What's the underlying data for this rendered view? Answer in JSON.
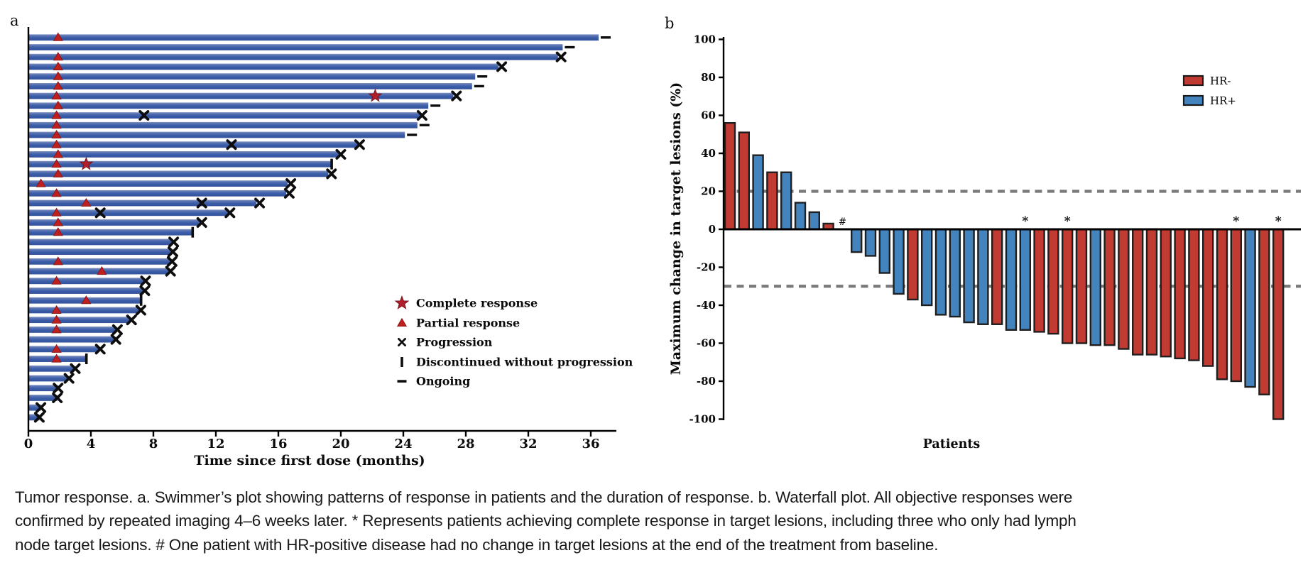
{
  "colors": {
    "swimmer_bar_top": "#8495c4",
    "swimmer_bar": "#3a5ca8",
    "swimmer_bar_bottom": "#34529a",
    "marker_red": "#c01f1f",
    "marker_red_edge": "#8f1414",
    "star_red": "#b01f2a",
    "black": "#0d0d0d",
    "hr_neg": "#c23b32",
    "hr_pos": "#4484be",
    "bar_outline": "#1f1f1f",
    "dashed_line": "#7a7a7a"
  },
  "chart_data": [
    {
      "type": "bar",
      "subtype": "swimmer",
      "panel_label": "a",
      "xlabel": "Time since first dose (months)",
      "xticks": [
        0,
        4,
        8,
        12,
        16,
        20,
        24,
        28,
        32,
        36
      ],
      "xlim": [
        0,
        37.5
      ],
      "grid": false,
      "legend_position": "right-middle",
      "legend": [
        {
          "symbol": "star",
          "label": "Complete response"
        },
        {
          "symbol": "triangle",
          "label": "Partial response"
        },
        {
          "symbol": "cross",
          "label": "Progression"
        },
        {
          "symbol": "vbar",
          "label": "Discontinued without progression"
        },
        {
          "symbol": "dash",
          "label": "Ongoing"
        }
      ],
      "bars": [
        {
          "len": 36.5,
          "pr": 1.9,
          "ongoing": true
        },
        {
          "len": 34.2,
          "ongoing": true
        },
        {
          "len": 33.9,
          "pr": 1.9,
          "x": [
            34.1
          ]
        },
        {
          "len": 30.1,
          "pr": 1.9,
          "x": [
            30.3
          ]
        },
        {
          "len": 28.6,
          "pr": 1.9,
          "ongoing": true
        },
        {
          "len": 28.4,
          "pr": 1.9,
          "ongoing": true
        },
        {
          "len": 27.2,
          "pr": 1.8,
          "cr": 22.2,
          "x": [
            27.4
          ]
        },
        {
          "len": 25.6,
          "pr": 1.9,
          "ongoing": true
        },
        {
          "len": 25.1,
          "pr": 1.8,
          "x": [
            7.4,
            25.2
          ]
        },
        {
          "len": 24.9,
          "pr": 1.8,
          "ongoing": true
        },
        {
          "len": 24.1,
          "pr": 1.8,
          "ongoing": true
        },
        {
          "len": 21.1,
          "pr": 1.8,
          "x": [
            13.0,
            21.2
          ]
        },
        {
          "len": 19.9,
          "pr": 1.9,
          "x": [
            20.0
          ]
        },
        {
          "len": 19.4,
          "pr": 1.8,
          "cr": 3.7,
          "disc": true
        },
        {
          "len": 19.2,
          "pr": 1.9,
          "x": [
            19.4
          ]
        },
        {
          "len": 16.6,
          "pr": 0.8,
          "x": [
            16.8
          ]
        },
        {
          "len": 16.5,
          "pr": 1.8,
          "x": [
            16.7
          ]
        },
        {
          "len": 14.6,
          "pr": 3.7,
          "x": [
            11.1,
            14.8
          ]
        },
        {
          "len": 12.8,
          "pr": 1.8,
          "x": [
            4.6,
            12.9
          ]
        },
        {
          "len": 11.0,
          "pr": 1.9,
          "x": [
            11.1
          ]
        },
        {
          "len": 10.5,
          "pr": 1.9,
          "disc": true
        },
        {
          "len": 9.2,
          "x": [
            9.3
          ]
        },
        {
          "len": 9.15,
          "x": [
            9.25
          ]
        },
        {
          "len": 9.1,
          "pr": 1.9,
          "x": [
            9.2
          ]
        },
        {
          "len": 9.0,
          "pr": 4.7,
          "x": [
            9.1
          ]
        },
        {
          "len": 7.4,
          "pr": 1.8,
          "x": [
            7.5
          ]
        },
        {
          "len": 7.35,
          "x": [
            7.45
          ]
        },
        {
          "len": 7.2,
          "pr": 3.7,
          "disc": true
        },
        {
          "len": 7.1,
          "pr": 1.8,
          "x": [
            7.2
          ]
        },
        {
          "len": 6.5,
          "pr": 1.8,
          "x": [
            6.6
          ]
        },
        {
          "len": 5.6,
          "pr": 1.8,
          "x": [
            5.7
          ]
        },
        {
          "len": 5.5,
          "x": [
            5.6
          ]
        },
        {
          "len": 4.5,
          "pr": 1.8,
          "x": [
            4.6
          ]
        },
        {
          "len": 3.7,
          "pr": 1.8,
          "disc": true
        },
        {
          "len": 2.9,
          "x": [
            3.0
          ]
        },
        {
          "len": 2.5,
          "x": [
            2.6
          ]
        },
        {
          "len": 1.9,
          "x": [
            1.9
          ]
        },
        {
          "len": 1.85,
          "x": [
            1.85
          ]
        },
        {
          "len": 0.8,
          "x": [
            0.8
          ]
        },
        {
          "len": 0.7,
          "x": [
            0.7
          ]
        }
      ]
    },
    {
      "type": "bar",
      "subtype": "waterfall",
      "panel_label": "b",
      "ylabel": "Maximum change in target lesions (%)",
      "xlabel": "Patients",
      "yticks": [
        100,
        80,
        60,
        40,
        20,
        0,
        -20,
        -40,
        -60,
        -80,
        -100
      ],
      "ylim": [
        -100,
        100
      ],
      "ref_lines": [
        20,
        -30
      ],
      "grid": false,
      "legend_position": "top-right-inside",
      "legend": [
        {
          "label": "HR-",
          "color_key": "hr_neg"
        },
        {
          "label": "HR+",
          "color_key": "hr_pos"
        }
      ],
      "hash_symbol": "#",
      "star_symbol": "*",
      "bars": [
        {
          "v": 56,
          "g": "HR-"
        },
        {
          "v": 51,
          "g": "HR-"
        },
        {
          "v": 39,
          "g": "HR+"
        },
        {
          "v": 30,
          "g": "HR-"
        },
        {
          "v": 30,
          "g": "HR+"
        },
        {
          "v": 14,
          "g": "HR+"
        },
        {
          "v": 9,
          "g": "HR+"
        },
        {
          "v": 3,
          "g": "HR-"
        },
        {
          "v": 0,
          "g": "HR+",
          "hash": true
        },
        {
          "v": -12,
          "g": "HR+"
        },
        {
          "v": -14,
          "g": "HR+"
        },
        {
          "v": -23,
          "g": "HR+"
        },
        {
          "v": -34,
          "g": "HR+"
        },
        {
          "v": -37,
          "g": "HR-"
        },
        {
          "v": -40,
          "g": "HR+"
        },
        {
          "v": -45,
          "g": "HR+"
        },
        {
          "v": -46,
          "g": "HR+"
        },
        {
          "v": -49,
          "g": "HR+"
        },
        {
          "v": -50,
          "g": "HR+"
        },
        {
          "v": -50,
          "g": "HR-"
        },
        {
          "v": -53,
          "g": "HR+"
        },
        {
          "v": -53,
          "g": "HR+",
          "star": true
        },
        {
          "v": -54,
          "g": "HR-"
        },
        {
          "v": -55,
          "g": "HR-"
        },
        {
          "v": -60,
          "g": "HR-",
          "star": true
        },
        {
          "v": -60,
          "g": "HR-"
        },
        {
          "v": -61,
          "g": "HR+"
        },
        {
          "v": -61,
          "g": "HR-"
        },
        {
          "v": -63,
          "g": "HR-"
        },
        {
          "v": -66,
          "g": "HR-"
        },
        {
          "v": -66,
          "g": "HR-"
        },
        {
          "v": -67,
          "g": "HR-"
        },
        {
          "v": -68,
          "g": "HR-"
        },
        {
          "v": -69,
          "g": "HR-"
        },
        {
          "v": -72,
          "g": "HR-"
        },
        {
          "v": -79,
          "g": "HR-"
        },
        {
          "v": -80,
          "g": "HR-",
          "star": true
        },
        {
          "v": -83,
          "g": "HR+"
        },
        {
          "v": -87,
          "g": "HR-"
        },
        {
          "v": -100,
          "g": "HR-",
          "star": true
        }
      ]
    }
  ],
  "caption": {
    "lines": [
      "Tumor response. a. Swimmer’s plot showing patterns of response in patients and the duration of response. b. Waterfall plot. All objective responses were",
      "confirmed by repeated imaging 4–6 weeks later. * Represents patients achieving complete response in target lesions, including three who only had lymph",
      "node target lesions. # One patient with HR-positive disease had no change in target lesions at the end of the treatment from baseline."
    ]
  }
}
